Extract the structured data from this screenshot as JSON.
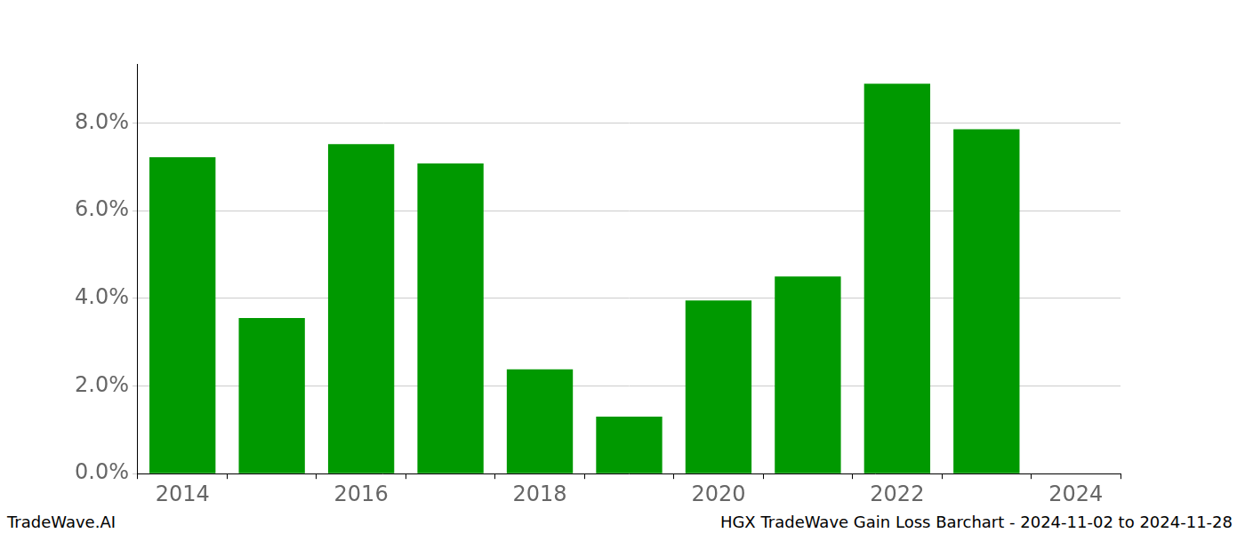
{
  "chart_data": {
    "type": "bar",
    "annotations": [
      "TradeWave.AI",
      "HGX TradeWave Gain Loss Barchart - 2024-11-02 to 2024-11-28"
    ],
    "categories": [
      "2014",
      null,
      "2016",
      null,
      "2018",
      null,
      "2020",
      null,
      "2022",
      null,
      "2024"
    ],
    "values": [
      7.22,
      3.55,
      7.52,
      7.08,
      2.38,
      1.3,
      3.95,
      4.5,
      8.9,
      7.86,
      null
    ],
    "color": "#009900",
    "ylim": [
      0,
      9.35
    ],
    "yticks": [
      {
        "value": 0,
        "label": "0.0%"
      },
      {
        "value": 2,
        "label": "2.0%"
      },
      {
        "value": 4,
        "label": "4.0%"
      },
      {
        "value": 6,
        "label": "6.0%"
      },
      {
        "value": 8,
        "label": "8.0%"
      }
    ],
    "grid": true
  }
}
